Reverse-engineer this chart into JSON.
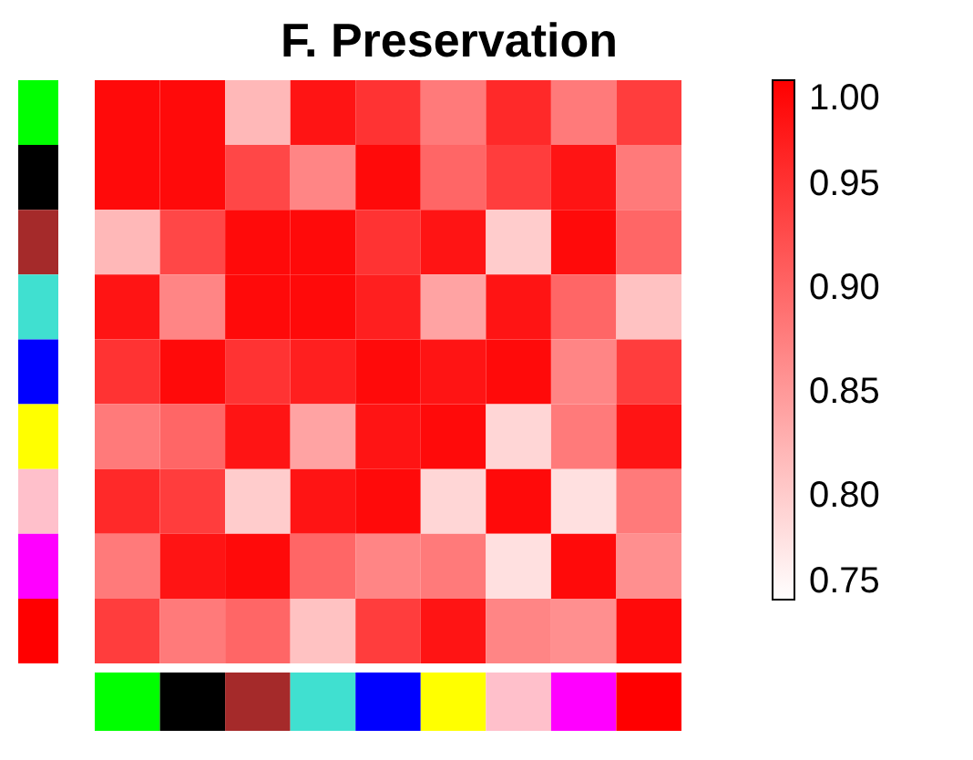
{
  "chart_data": {
    "type": "heatmap",
    "title": "F.  Preservation",
    "categories": [
      null,
      null,
      null,
      null,
      null,
      null,
      null,
      null,
      null
    ],
    "y_categories": [
      null,
      null,
      null,
      null,
      null,
      null,
      null,
      null,
      null
    ],
    "cells": [
      [
        0.99,
        0.99,
        0.82,
        0.98,
        0.95,
        0.88,
        0.96,
        0.88,
        0.94
      ],
      [
        0.99,
        0.99,
        0.93,
        0.87,
        0.99,
        0.9,
        0.94,
        0.98,
        0.88
      ],
      [
        0.82,
        0.93,
        0.99,
        0.99,
        0.95,
        0.98,
        0.8,
        0.99,
        0.9
      ],
      [
        0.98,
        0.87,
        0.99,
        0.99,
        0.97,
        0.84,
        0.98,
        0.9,
        0.81
      ],
      [
        0.95,
        0.99,
        0.95,
        0.97,
        0.99,
        0.98,
        0.99,
        0.87,
        0.94
      ],
      [
        0.88,
        0.9,
        0.98,
        0.84,
        0.98,
        0.99,
        0.79,
        0.88,
        0.98
      ],
      [
        0.96,
        0.94,
        0.8,
        0.98,
        0.99,
        0.79,
        0.99,
        0.78,
        0.88
      ],
      [
        0.88,
        0.98,
        0.99,
        0.9,
        0.87,
        0.88,
        0.78,
        0.99,
        0.86
      ],
      [
        0.94,
        0.88,
        0.9,
        0.81,
        0.94,
        0.98,
        0.87,
        0.86,
        0.99
      ]
    ],
    "clim": [
      0.75,
      1.0
    ],
    "cticks": [
      {
        "value": 0.75,
        "label": "0.75"
      },
      {
        "value": 0.8,
        "label": "0.80"
      },
      {
        "value": 0.85,
        "label": "0.85"
      },
      {
        "value": 0.9,
        "label": "0.90"
      },
      {
        "value": 0.95,
        "label": "0.95"
      },
      {
        "value": 1.0,
        "label": "1.00"
      }
    ]
  }
}
